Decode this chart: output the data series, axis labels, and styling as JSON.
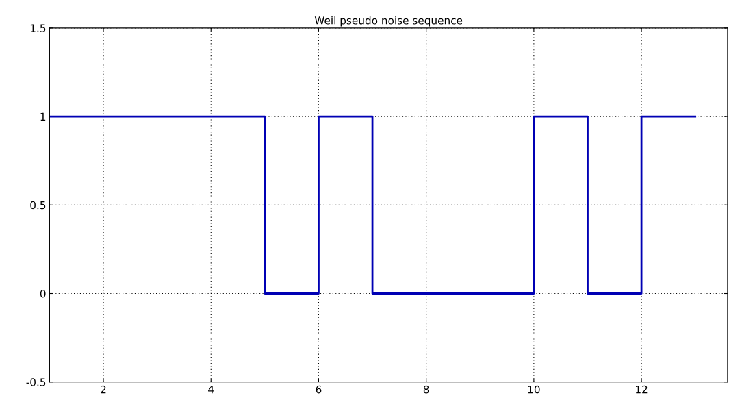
{
  "chart_data": {
    "type": "step",
    "title": "Weil pseudo noise sequence",
    "x": [
      1,
      2,
      3,
      4,
      5,
      6,
      7,
      8,
      9,
      10,
      11,
      12,
      13
    ],
    "series": [
      {
        "color": "#0000b4",
        "values": [
          1,
          1,
          1,
          1,
          0,
          1,
          0,
          0,
          0,
          1,
          0,
          1,
          1
        ]
      }
    ],
    "xlim": [
      1,
      13.6
    ],
    "xticks": [
      2,
      4,
      6,
      8,
      10,
      12
    ],
    "ylim": [
      -0.5,
      1.5
    ],
    "yticks": [
      -0.5,
      0,
      0.5,
      1,
      1.5
    ],
    "grid": true,
    "line_style": "solid",
    "marker": "none"
  }
}
